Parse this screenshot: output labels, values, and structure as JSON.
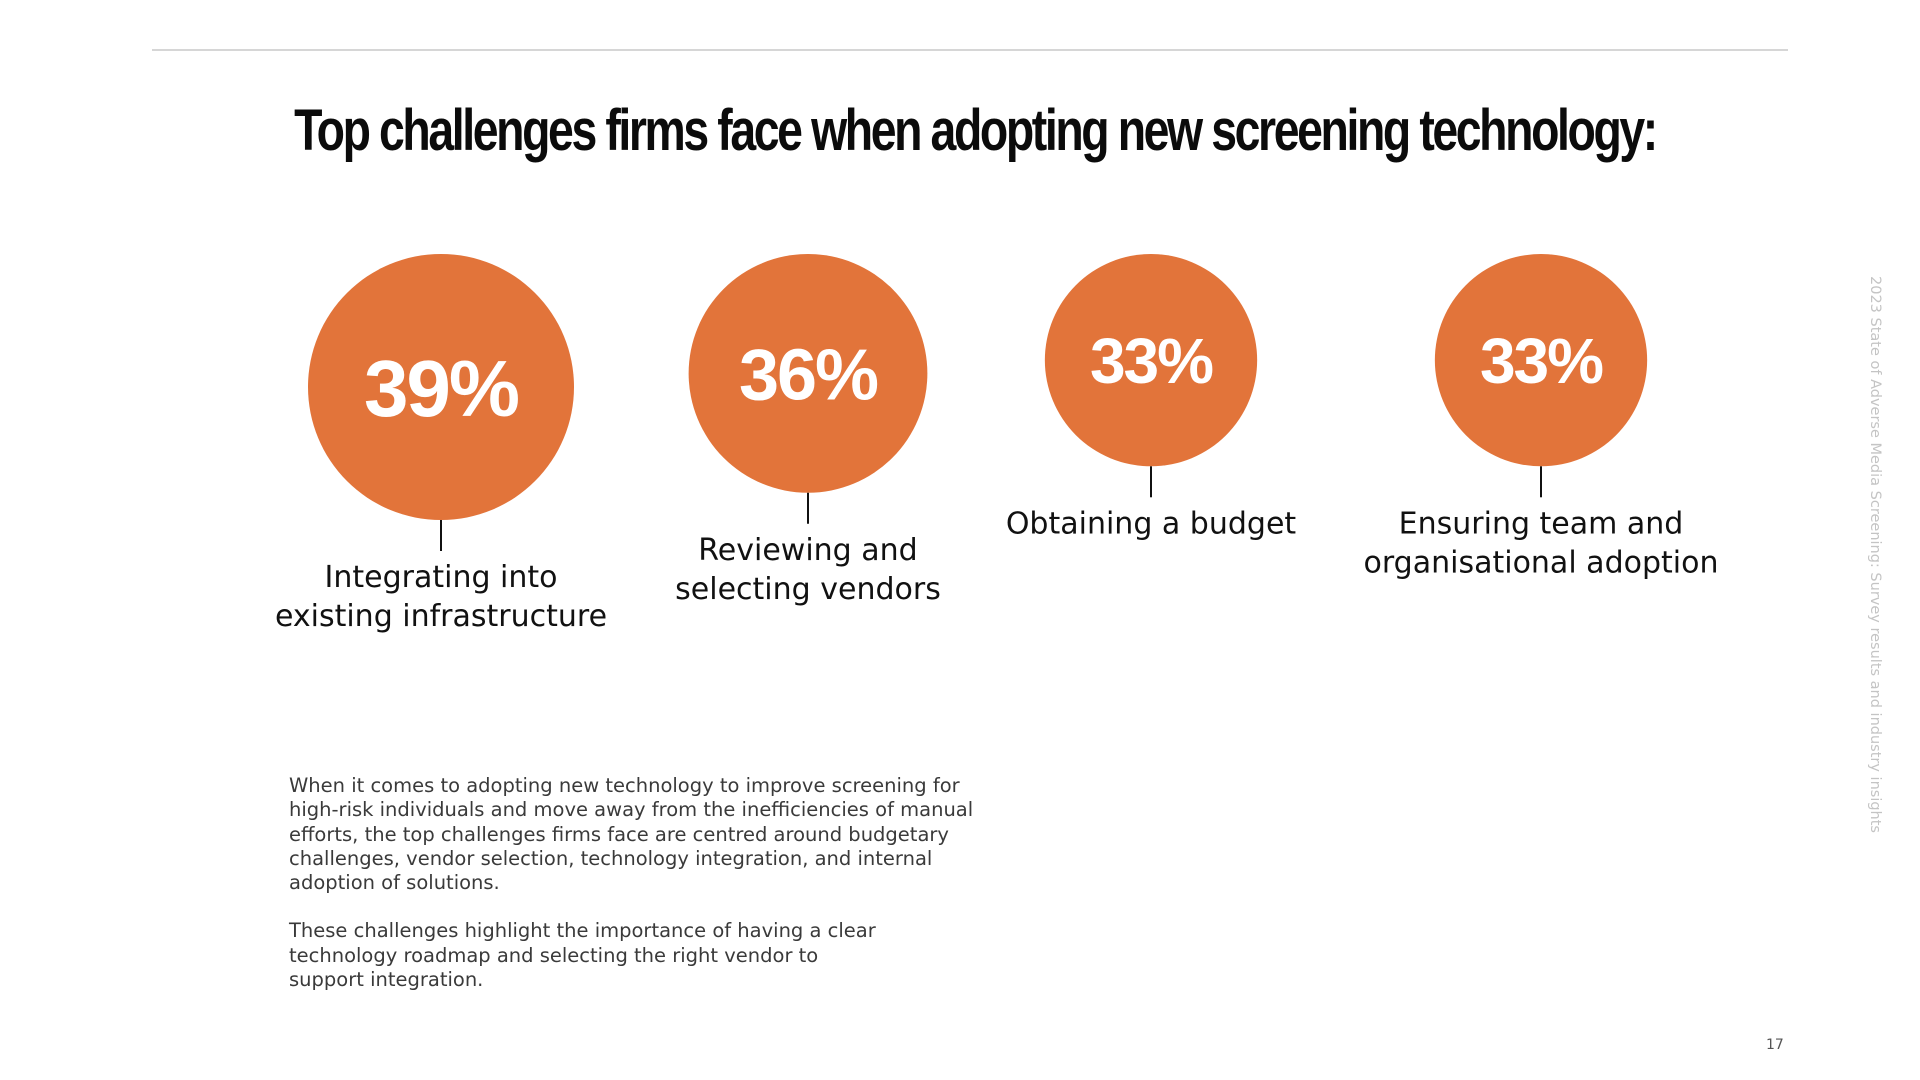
{
  "title": "Top challenges firms face when adopting new screening technology:",
  "accent_color": "#e2743a",
  "chart_data": {
    "type": "bubble",
    "title": "Top challenges firms face when adopting new screening technology:",
    "unit": "%",
    "categories": [
      [
        "Integrating into",
        "existing infrastructure"
      ],
      [
        "Reviewing and",
        "selecting vendors"
      ],
      [
        "Obtaining a budget"
      ],
      [
        "Ensuring team and",
        "organisational adoption"
      ]
    ],
    "values": [
      39,
      36,
      33,
      33
    ],
    "value_labels": [
      "39%",
      "36%",
      "33%",
      "33%"
    ],
    "color": "#e2743a"
  },
  "body": {
    "paragraphs": [
      "When it comes to adopting new technology to improve screening for\nhigh-risk individuals and move away from the inefficiencies of manual\nefforts, the top challenges firms face are centred around budgetary\nchallenges, vendor selection, technology integration, and internal\nadoption of solutions.",
      "These challenges highlight the importance of having a clear\ntechnology roadmap and selecting the right vendor to\nsupport integration."
    ]
  },
  "side_label": "2023 State of Adverse Media Screening: Survey results and industry insights",
  "page_number": "17"
}
